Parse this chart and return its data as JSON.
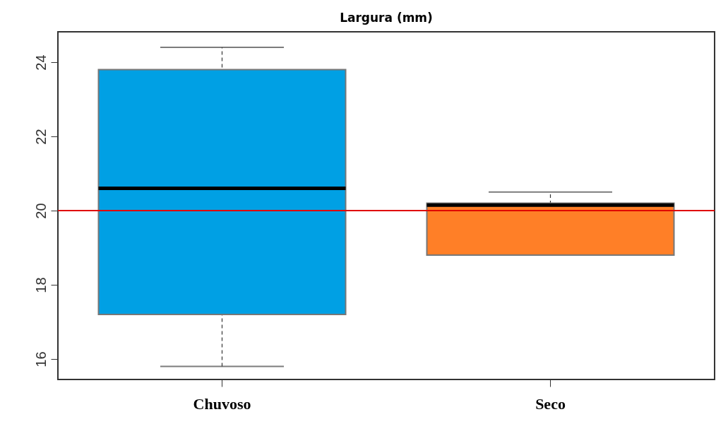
{
  "chart_data": {
    "type": "box",
    "title": "Largura (mm)",
    "categories": [
      "Chuvoso",
      "Seco"
    ],
    "boxes": [
      {
        "low": 15.8,
        "q1": 17.2,
        "median": 20.6,
        "q3": 23.8,
        "high": 24.4
      },
      {
        "low": 18.8,
        "q1": 18.8,
        "median": 20.15,
        "q3": 20.2,
        "high": 20.5
      }
    ],
    "colors": [
      "#00a0e4",
      "#ff7f27"
    ],
    "ylim": [
      15.45,
      24.82
    ],
    "yticks": [
      16,
      18,
      20,
      22,
      24
    ],
    "ref_lines": [
      {
        "axis": "y",
        "value": 20,
        "color": "#e00000"
      }
    ]
  }
}
